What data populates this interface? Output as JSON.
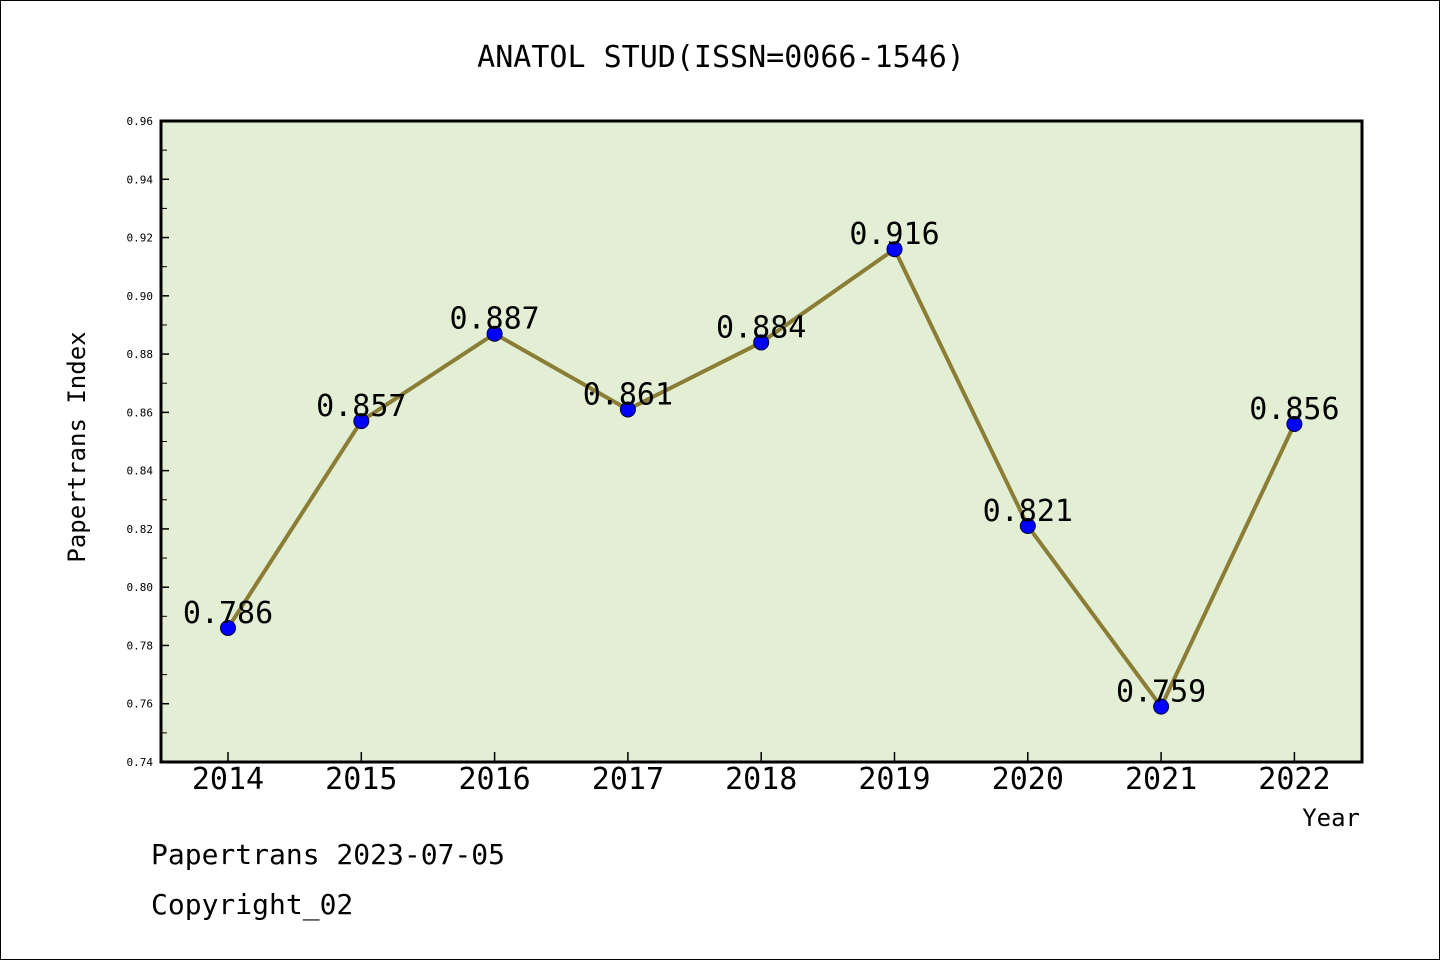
{
  "chart_data": {
    "type": "line",
    "title": "ANATOL STUD(ISSN=0066-1546)",
    "xlabel": "Year",
    "ylabel": "Papertrans Index",
    "categories": [
      "2014",
      "2015",
      "2016",
      "2017",
      "2018",
      "2019",
      "2020",
      "2021",
      "2022"
    ],
    "values": [
      0.786,
      0.857,
      0.887,
      0.861,
      0.884,
      0.916,
      0.821,
      0.759,
      0.856
    ],
    "data_labels": [
      "0.786",
      "0.857",
      "0.887",
      "0.861",
      "0.884",
      "0.916",
      "0.821",
      "0.759",
      "0.856"
    ],
    "ylim": [
      0.74,
      0.96
    ],
    "yticks": [
      0.74,
      0.76,
      0.78,
      0.8,
      0.82,
      0.84,
      0.86,
      0.88,
      0.9,
      0.92,
      0.94,
      0.96
    ],
    "ytick_labels": [
      "0.74",
      "0.76",
      "0.78",
      "0.80",
      "0.82",
      "0.84",
      "0.86",
      "0.88",
      "0.90",
      "0.92",
      "0.94",
      "0.96"
    ],
    "grid": false,
    "colors": {
      "plot_background": "#e2efd5",
      "line": "#8b7d35",
      "marker": "#0000ff"
    }
  },
  "footer": {
    "line1": "Papertrans 2023-07-05",
    "line2": "Copyright_02"
  }
}
